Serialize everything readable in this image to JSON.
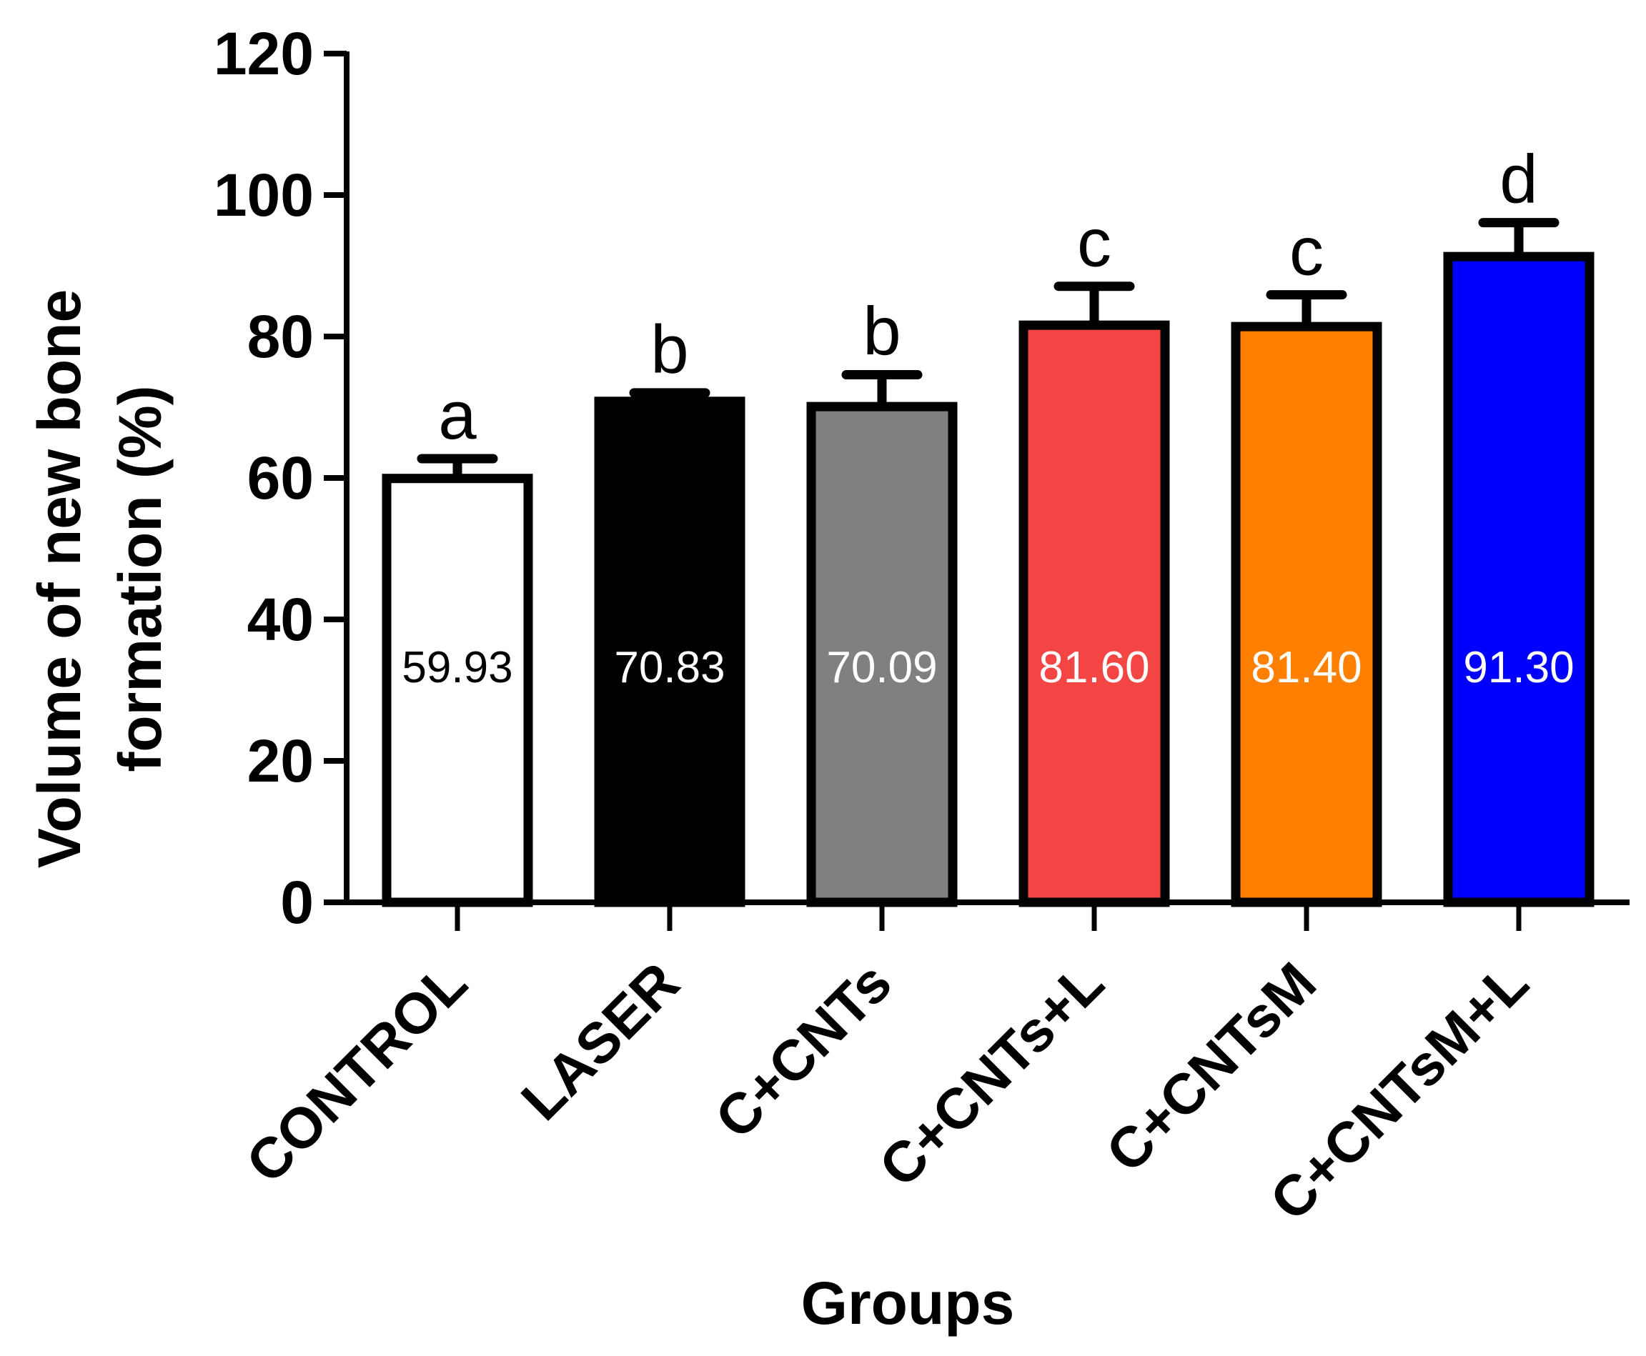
{
  "chart_data": {
    "type": "bar",
    "title": "",
    "xlabel": "Groups",
    "ylabel_lines": [
      "Volume of new bone",
      "formation  (%)"
    ],
    "ylim": [
      0,
      120
    ],
    "yticks": [
      0,
      20,
      40,
      60,
      80,
      100,
      120
    ],
    "ytick_labels": [
      "0",
      "20",
      "40",
      "60",
      "80",
      "100",
      "120"
    ],
    "grid": false,
    "categories": [
      "CONTROL",
      "LASER",
      "C+CNTs",
      "C+CNTs+L",
      "C+CNTsM",
      "C+CNTsM+L"
    ],
    "values": [
      59.93,
      70.83,
      70.09,
      81.6,
      81.4,
      91.3
    ],
    "value_labels": [
      "59.93",
      "70.83",
      "70.09",
      "81.60",
      "81.40",
      "91.30"
    ],
    "error_upper": [
      2.8,
      1.2,
      4.5,
      5.5,
      4.5,
      4.8
    ],
    "significance_letters": [
      "a",
      "b",
      "b",
      "c",
      "c",
      "d"
    ],
    "bar_colors": [
      "#ffffff",
      "#000000",
      "#808080",
      "#f44545",
      "#ff8000",
      "#0000ff"
    ],
    "value_label_colors": [
      "#000000",
      "#ffffff",
      "#ffffff",
      "#ffffff",
      "#ffffff",
      "#ffffff"
    ]
  }
}
